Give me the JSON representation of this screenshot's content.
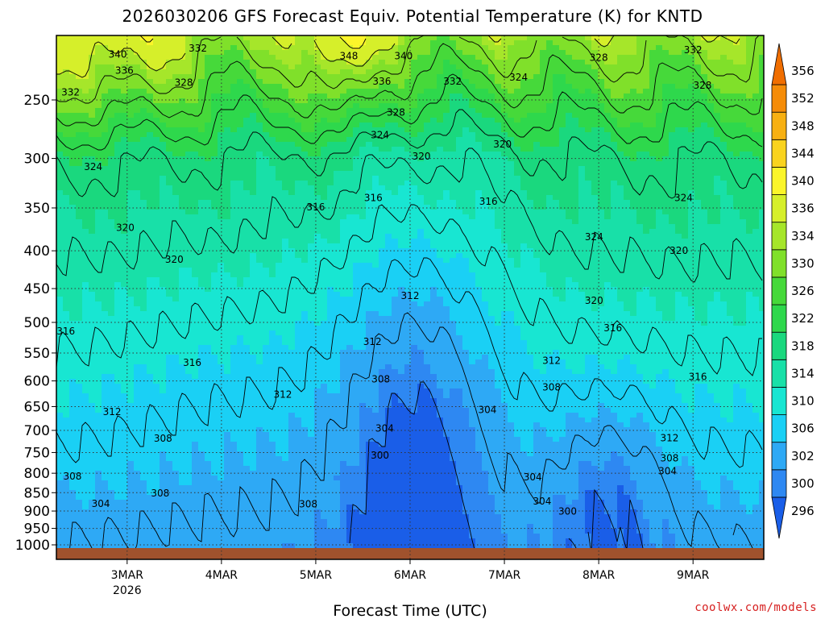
{
  "title": "2026030206 GFS Forecast Equiv. Potential Temperature (K) for KNTD",
  "credit": "coolwx.com/models",
  "chart_data": {
    "type": "heatmap",
    "title": "2026030206 GFS Forecast Equiv. Potential Temperature (K) for KNTD",
    "xlabel": "Forecast Time (UTC)",
    "ylabel": "",
    "y_axis_scale": "log-pressure, inverted (hPa)",
    "x_ticks": [
      {
        "label": "3MAR",
        "sub": "2026",
        "day": 3
      },
      {
        "label": "4MAR",
        "sub": "",
        "day": 4
      },
      {
        "label": "5MAR",
        "sub": "",
        "day": 5
      },
      {
        "label": "6MAR",
        "sub": "",
        "day": 6
      },
      {
        "label": "7MAR",
        "sub": "",
        "day": 7
      },
      {
        "label": "8MAR",
        "sub": "",
        "day": 8
      },
      {
        "label": "9MAR",
        "sub": "",
        "day": 9
      }
    ],
    "xlim": [
      2.25,
      9.75
    ],
    "y_ticks": [
      250,
      300,
      350,
      400,
      450,
      500,
      550,
      600,
      650,
      700,
      750,
      800,
      850,
      900,
      950,
      1000
    ],
    "ylim": [
      1020,
      200
    ],
    "grid": true,
    "colorbar": {
      "levels": [
        296,
        300,
        302,
        306,
        310,
        314,
        318,
        322,
        326,
        330,
        334,
        336,
        340,
        344,
        348,
        352,
        356
      ],
      "colors": [
        "#1a5ee8",
        "#2e88f2",
        "#2ea9f5",
        "#1ad0f5",
        "#18e6d2",
        "#18e0a8",
        "#1ad87e",
        "#2ed84c",
        "#46d93a",
        "#80e02a",
        "#a6e62a",
        "#d6ef2a",
        "#fbf52a",
        "#f9d31e",
        "#f7b012",
        "#f58c08",
        "#f06e00"
      ],
      "placement": "right"
    },
    "contour_labels": [
      {
        "day": 2.9,
        "p": 217,
        "v": "340"
      },
      {
        "day": 2.97,
        "p": 228,
        "v": "336"
      },
      {
        "day": 3.75,
        "p": 213,
        "v": "332"
      },
      {
        "day": 3.6,
        "p": 237,
        "v": "328"
      },
      {
        "day": 2.4,
        "p": 244,
        "v": "332"
      },
      {
        "day": 5.35,
        "p": 218,
        "v": "348"
      },
      {
        "day": 5.93,
        "p": 218,
        "v": "340"
      },
      {
        "day": 5.7,
        "p": 236,
        "v": "336"
      },
      {
        "day": 6.45,
        "p": 236,
        "v": "332"
      },
      {
        "day": 5.85,
        "p": 260,
        "v": "328"
      },
      {
        "day": 5.68,
        "p": 279,
        "v": "324"
      },
      {
        "day": 6.12,
        "p": 298,
        "v": "320"
      },
      {
        "day": 7.15,
        "p": 233,
        "v": "324"
      },
      {
        "day": 8.0,
        "p": 219,
        "v": "328"
      },
      {
        "day": 9.0,
        "p": 214,
        "v": "332"
      },
      {
        "day": 9.1,
        "p": 239,
        "v": "328"
      },
      {
        "day": 2.64,
        "p": 308,
        "v": "324"
      },
      {
        "day": 2.98,
        "p": 372,
        "v": "320"
      },
      {
        "day": 3.5,
        "p": 411,
        "v": "320"
      },
      {
        "day": 5.0,
        "p": 349,
        "v": "316"
      },
      {
        "day": 5.61,
        "p": 339,
        "v": "316"
      },
      {
        "day": 6.0,
        "p": 460,
        "v": "312"
      },
      {
        "day": 6.83,
        "p": 343,
        "v": "316"
      },
      {
        "day": 6.98,
        "p": 287,
        "v": "320"
      },
      {
        "day": 7.95,
        "p": 383,
        "v": "324"
      },
      {
        "day": 8.9,
        "p": 339,
        "v": "324"
      },
      {
        "day": 8.85,
        "p": 400,
        "v": "320"
      },
      {
        "day": 7.95,
        "p": 467,
        "v": "320"
      },
      {
        "day": 8.15,
        "p": 509,
        "v": "316"
      },
      {
        "day": 9.05,
        "p": 592,
        "v": "316"
      },
      {
        "day": 2.35,
        "p": 514,
        "v": "316"
      },
      {
        "day": 3.69,
        "p": 567,
        "v": "316"
      },
      {
        "day": 5.6,
        "p": 531,
        "v": "312"
      },
      {
        "day": 7.5,
        "p": 563,
        "v": "312"
      },
      {
        "day": 5.69,
        "p": 597,
        "v": "308"
      },
      {
        "day": 7.5,
        "p": 612,
        "v": "308"
      },
      {
        "day": 4.65,
        "p": 626,
        "v": "312"
      },
      {
        "day": 2.84,
        "p": 661,
        "v": "312"
      },
      {
        "day": 3.38,
        "p": 718,
        "v": "308"
      },
      {
        "day": 5.73,
        "p": 696,
        "v": "304"
      },
      {
        "day": 6.82,
        "p": 657,
        "v": "304"
      },
      {
        "day": 5.68,
        "p": 757,
        "v": "300"
      },
      {
        "day": 8.75,
        "p": 717,
        "v": "312"
      },
      {
        "day": 8.75,
        "p": 763,
        "v": "308"
      },
      {
        "day": 8.73,
        "p": 795,
        "v": "304"
      },
      {
        "day": 7.3,
        "p": 810,
        "v": "304"
      },
      {
        "day": 7.4,
        "p": 873,
        "v": "304"
      },
      {
        "day": 7.67,
        "p": 901,
        "v": "300"
      },
      {
        "day": 2.42,
        "p": 808,
        "v": "308"
      },
      {
        "day": 2.72,
        "p": 880,
        "v": "304"
      },
      {
        "day": 3.35,
        "p": 851,
        "v": "308"
      },
      {
        "day": 4.92,
        "p": 881,
        "v": "308"
      }
    ]
  }
}
